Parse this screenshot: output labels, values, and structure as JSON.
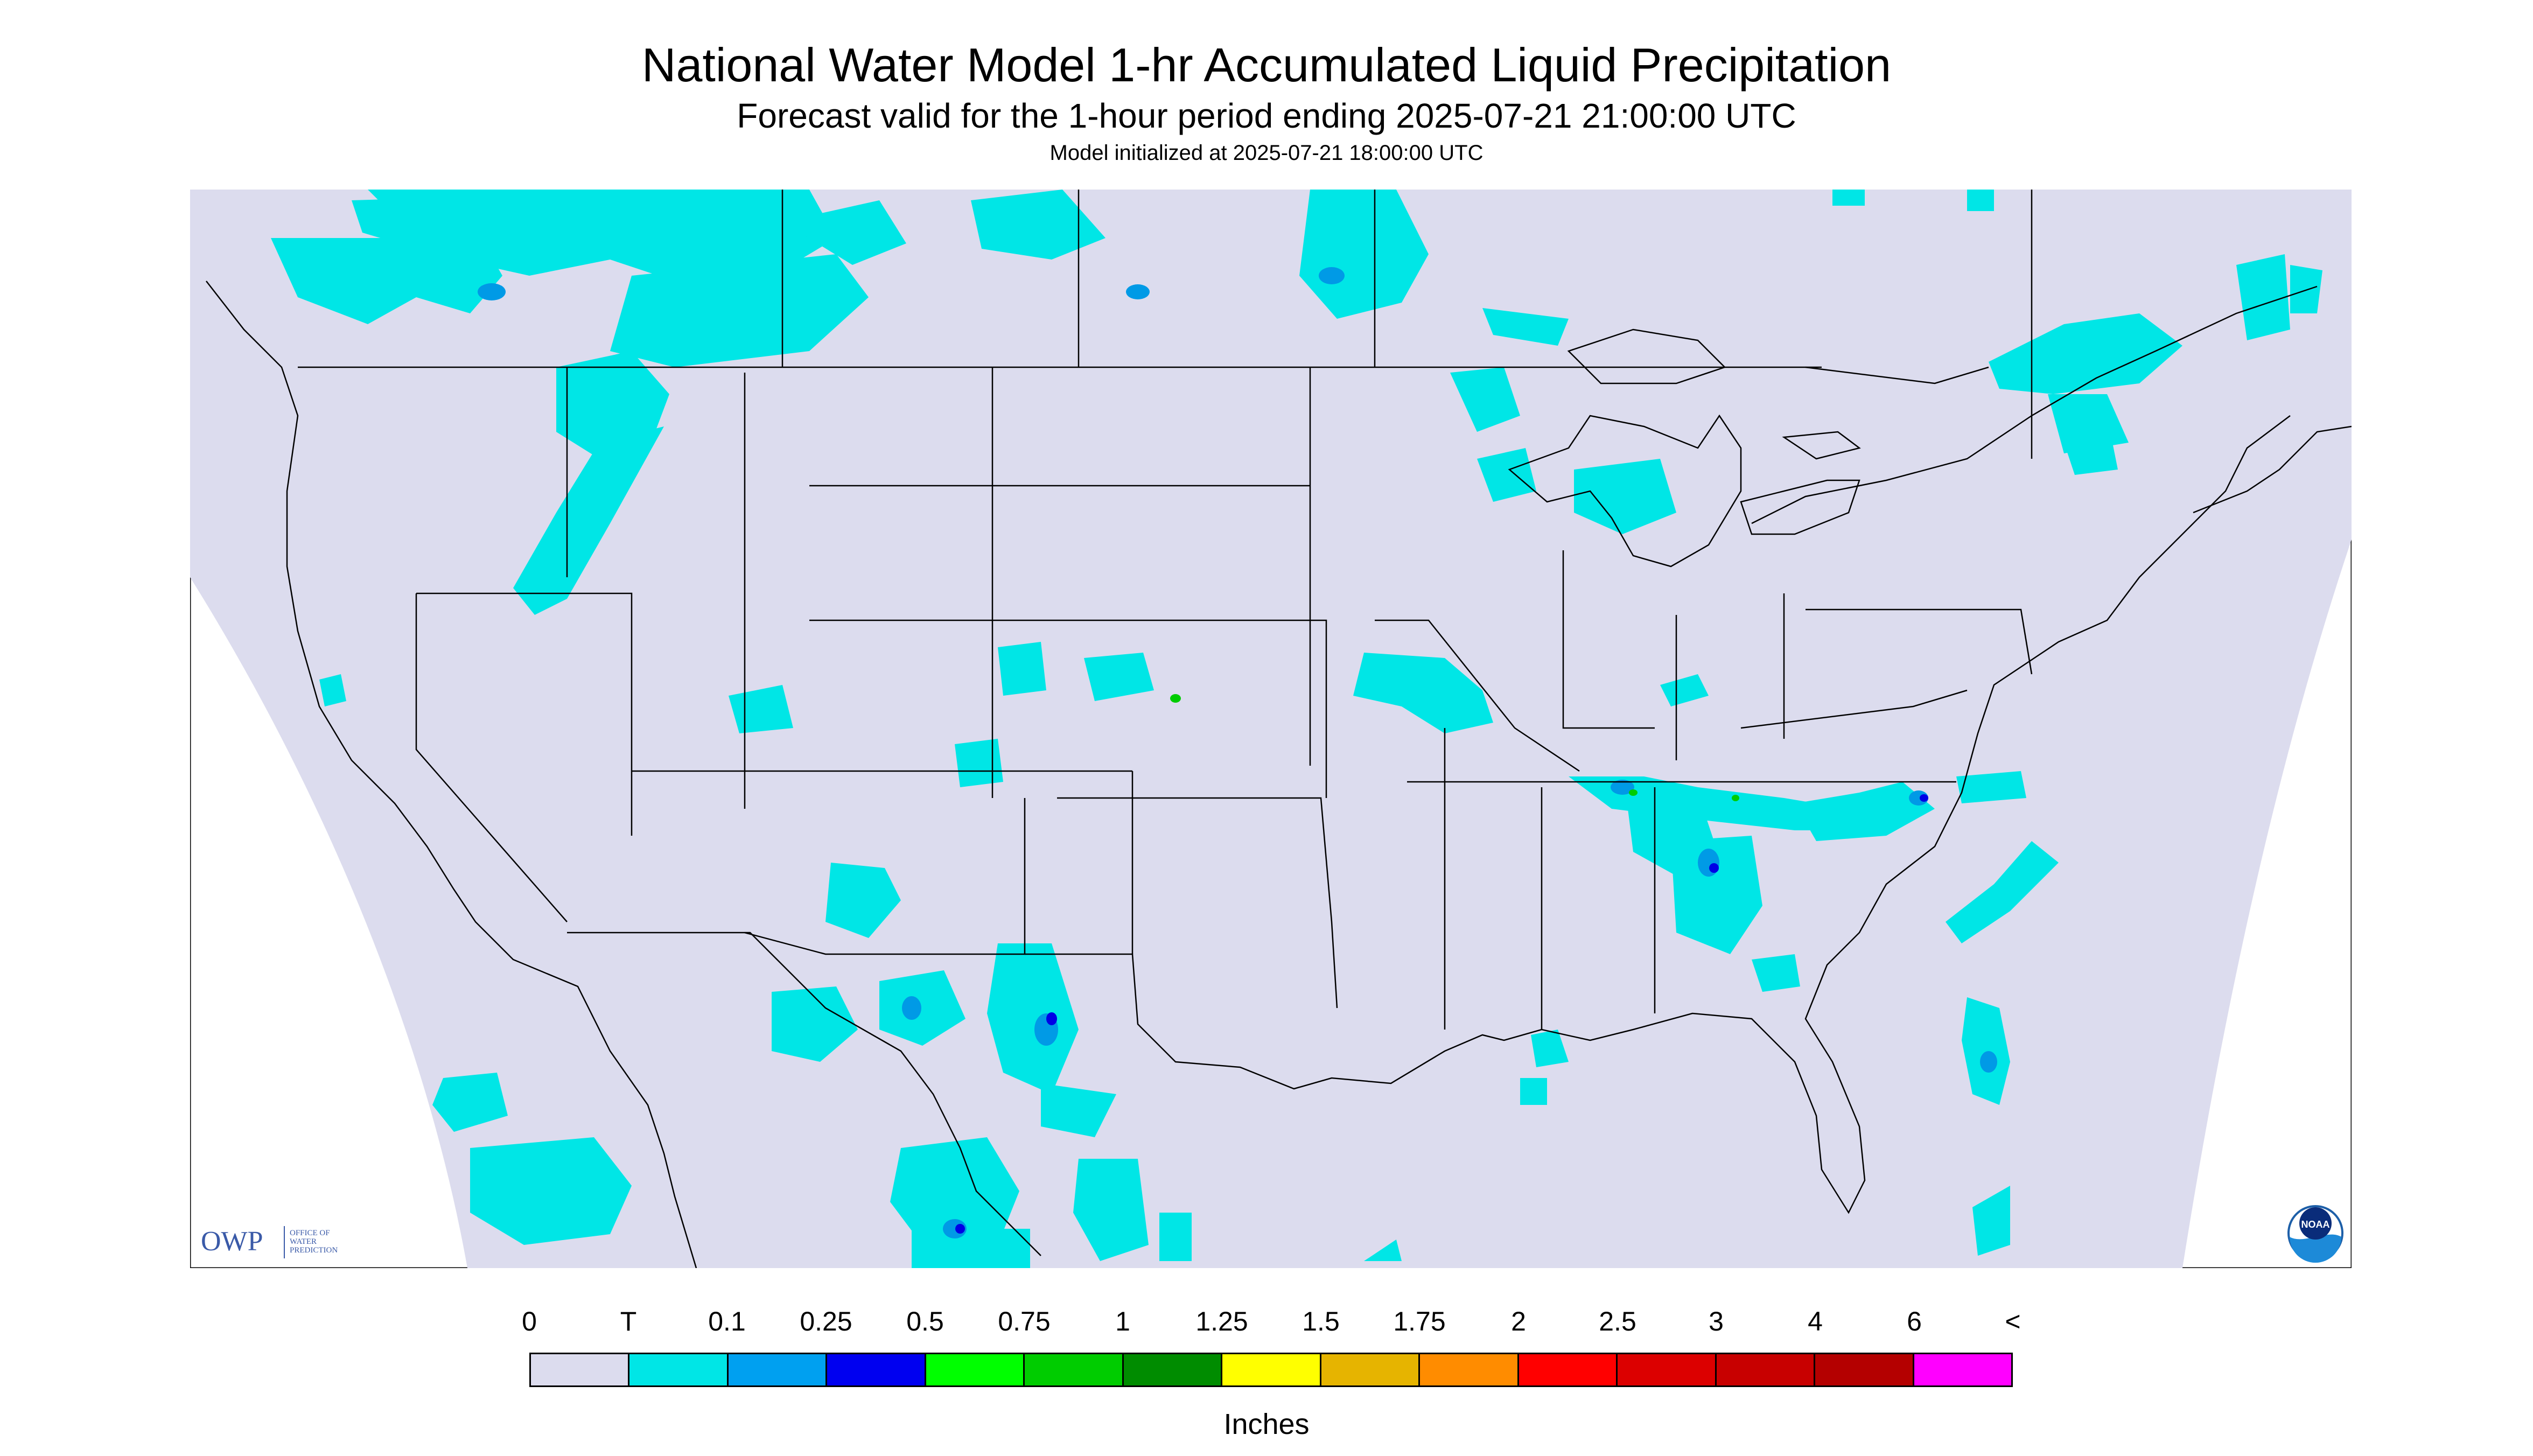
{
  "header": {
    "title": "National Water Model 1-hr Accumulated Liquid Precipitation",
    "subtitle": "Forecast valid for the 1-hour period ending 2025-07-21 21:00:00 UTC",
    "init_line": "Model initialized at 2025-07-21 18:00:00 UTC"
  },
  "map": {
    "background_color": "#dcdcee",
    "precip_colors": {
      "trace": "#00e6e6",
      "light": "#009ae6",
      "heavy": "#0000e6",
      "green": "#00cc00"
    },
    "logos": {
      "owp_text": "OWP",
      "owp_sub": [
        "OFFICE OF",
        "WATER",
        "PREDICTION"
      ],
      "noaa_text": "NOAA"
    }
  },
  "legend": {
    "ticks": [
      "0",
      "T",
      "0.1",
      "0.25",
      "0.5",
      "0.75",
      "1",
      "1.25",
      "1.5",
      "1.75",
      "2",
      "2.5",
      "3",
      "4",
      "6",
      "<"
    ],
    "colors": [
      "#dcdcee",
      "#00e6e6",
      "#00a0f0",
      "#0000f0",
      "#00ff00",
      "#00cc00",
      "#008c00",
      "#ffff00",
      "#e6b400",
      "#ff8c00",
      "#ff0000",
      "#dc0000",
      "#c80000",
      "#b40000",
      "#ff00ff",
      "#9b59c8"
    ],
    "units": "Inches"
  }
}
